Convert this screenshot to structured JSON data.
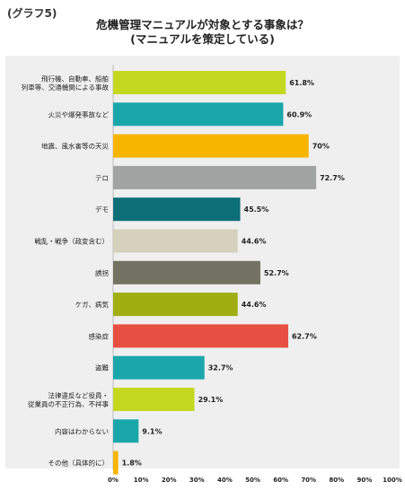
{
  "header": {
    "graph_label": "(グラフ5)",
    "title_line1": "危機管理マニュアルが対象とする事象は？",
    "title_line2": "(マニュアルを策定している)"
  },
  "chart_data": {
    "type": "bar",
    "orientation": "horizontal",
    "title": "危機管理マニュアルが対象とする事象は？(マニュアルを策定している)",
    "xlim": [
      0,
      100
    ],
    "x_ticks": [
      "0%",
      "10%",
      "20%",
      "30%",
      "40%",
      "50%",
      "60%",
      "70%",
      "80%",
      "90%",
      "100%"
    ],
    "grid": false,
    "bars": [
      {
        "label": [
          "飛行機、自動車、船舶",
          "列車等、交通機関による事故"
        ],
        "value": 61.8,
        "value_label": "61.8%",
        "color": "#c5d820"
      },
      {
        "label": [
          "火災や爆発事故など"
        ],
        "value": 60.9,
        "value_label": "60.9%",
        "color": "#1aa7ab"
      },
      {
        "label": [
          "地震、風水害等の天災"
        ],
        "value": 70,
        "value_label": "70%",
        "color": "#f7b500"
      },
      {
        "label": [
          "テロ"
        ],
        "value": 72.7,
        "value_label": "72.7%",
        "color": "#a2a3a3"
      },
      {
        "label": [
          "デモ"
        ],
        "value": 45.5,
        "value_label": "45.5%",
        "color": "#0c6f78"
      },
      {
        "label": [
          "戦乱・戦争（政変含む）"
        ],
        "value": 44.6,
        "value_label": "44.6%",
        "color": "#d5d1bd"
      },
      {
        "label": [
          "誘拐"
        ],
        "value": 52.7,
        "value_label": "52.7%",
        "color": "#727262"
      },
      {
        "label": [
          "ケガ、病気"
        ],
        "value": 44.6,
        "value_label": "44.6%",
        "color": "#a1ae12"
      },
      {
        "label": [
          "感染症"
        ],
        "value": 62.7,
        "value_label": "62.7%",
        "color": "#e74f42"
      },
      {
        "label": [
          "盗難"
        ],
        "value": 32.7,
        "value_label": "32.7%",
        "color": "#1aa7ab"
      },
      {
        "label": [
          "法律違反など役員・",
          "従業員の不正行為、不祥事"
        ],
        "value": 29.1,
        "value_label": "29.1%",
        "color": "#c5d820"
      },
      {
        "label": [
          "内容はわからない"
        ],
        "value": 9.1,
        "value_label": "9.1%",
        "color": "#1aa7ab"
      },
      {
        "label": [
          "その他（具体的に）"
        ],
        "value": 1.8,
        "value_label": "1.8%",
        "color": "#f7b500"
      }
    ]
  }
}
